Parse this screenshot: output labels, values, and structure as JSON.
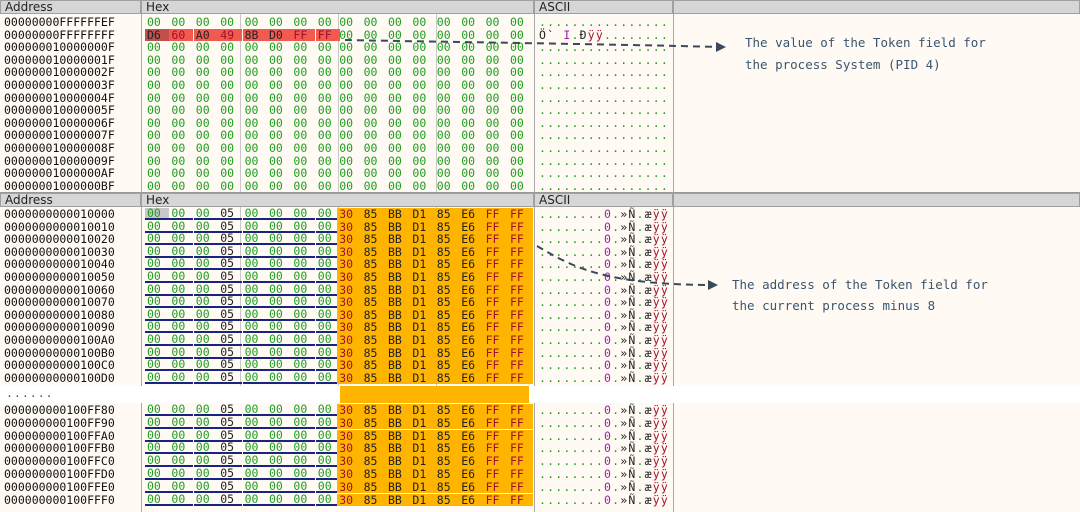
{
  "columns": {
    "address": "Address",
    "hex": "Hex",
    "ascii": "ASCII"
  },
  "colors": {
    "hex_zero": "#1f9d1f",
    "token_highlight": "#f0504a",
    "pointer_highlight": "#ffb400",
    "underline": "#1a237e"
  },
  "top_pane": {
    "rows": [
      {
        "address": "00000000FFFFFFEF",
        "bytes": [
          "00",
          "00",
          "00",
          "00",
          "00",
          "00",
          "00",
          "00",
          "00",
          "00",
          "00",
          "00",
          "00",
          "00",
          "00",
          "00"
        ],
        "ascii": "................"
      },
      {
        "address": "00000000FFFFFFFF",
        "bytes": [
          "D6",
          "60",
          "A0",
          "49",
          "8B",
          "D0",
          "FF",
          "FF",
          "00",
          "00",
          "00",
          "00",
          "00",
          "00",
          "00",
          "00"
        ],
        "ascii": "Ö` I.Ðÿÿ........"
      },
      {
        "address": "000000010000000F",
        "bytes": [
          "00",
          "00",
          "00",
          "00",
          "00",
          "00",
          "00",
          "00",
          "00",
          "00",
          "00",
          "00",
          "00",
          "00",
          "00",
          "00"
        ],
        "ascii": "................"
      },
      {
        "address": "000000010000001F",
        "bytes": [
          "00",
          "00",
          "00",
          "00",
          "00",
          "00",
          "00",
          "00",
          "00",
          "00",
          "00",
          "00",
          "00",
          "00",
          "00",
          "00"
        ],
        "ascii": "................"
      },
      {
        "address": "000000010000002F",
        "bytes": [
          "00",
          "00",
          "00",
          "00",
          "00",
          "00",
          "00",
          "00",
          "00",
          "00",
          "00",
          "00",
          "00",
          "00",
          "00",
          "00"
        ],
        "ascii": "................"
      },
      {
        "address": "000000010000003F",
        "bytes": [
          "00",
          "00",
          "00",
          "00",
          "00",
          "00",
          "00",
          "00",
          "00",
          "00",
          "00",
          "00",
          "00",
          "00",
          "00",
          "00"
        ],
        "ascii": "................"
      },
      {
        "address": "000000010000004F",
        "bytes": [
          "00",
          "00",
          "00",
          "00",
          "00",
          "00",
          "00",
          "00",
          "00",
          "00",
          "00",
          "00",
          "00",
          "00",
          "00",
          "00"
        ],
        "ascii": "................"
      },
      {
        "address": "000000010000005F",
        "bytes": [
          "00",
          "00",
          "00",
          "00",
          "00",
          "00",
          "00",
          "00",
          "00",
          "00",
          "00",
          "00",
          "00",
          "00",
          "00",
          "00"
        ],
        "ascii": "................"
      },
      {
        "address": "000000010000006F",
        "bytes": [
          "00",
          "00",
          "00",
          "00",
          "00",
          "00",
          "00",
          "00",
          "00",
          "00",
          "00",
          "00",
          "00",
          "00",
          "00",
          "00"
        ],
        "ascii": "................"
      },
      {
        "address": "000000010000007F",
        "bytes": [
          "00",
          "00",
          "00",
          "00",
          "00",
          "00",
          "00",
          "00",
          "00",
          "00",
          "00",
          "00",
          "00",
          "00",
          "00",
          "00"
        ],
        "ascii": "................"
      },
      {
        "address": "000000010000008F",
        "bytes": [
          "00",
          "00",
          "00",
          "00",
          "00",
          "00",
          "00",
          "00",
          "00",
          "00",
          "00",
          "00",
          "00",
          "00",
          "00",
          "00"
        ],
        "ascii": "................"
      },
      {
        "address": "000000010000009F",
        "bytes": [
          "00",
          "00",
          "00",
          "00",
          "00",
          "00",
          "00",
          "00",
          "00",
          "00",
          "00",
          "00",
          "00",
          "00",
          "00",
          "00"
        ],
        "ascii": "................"
      },
      {
        "address": "00000001000000AF",
        "bytes": [
          "00",
          "00",
          "00",
          "00",
          "00",
          "00",
          "00",
          "00",
          "00",
          "00",
          "00",
          "00",
          "00",
          "00",
          "00",
          "00"
        ],
        "ascii": "................"
      },
      {
        "address": "00000001000000BF",
        "bytes": [
          "00",
          "00",
          "00",
          "00",
          "00",
          "00",
          "00",
          "00",
          "00",
          "00",
          "00",
          "00",
          "00",
          "00",
          "00",
          "00"
        ],
        "ascii": "................"
      }
    ]
  },
  "bottom_bytes": [
    "00",
    "00",
    "00",
    "05",
    "00",
    "00",
    "00",
    "00",
    "30",
    "85",
    "BB",
    "D1",
    "85",
    "E6",
    "FF",
    "FF"
  ],
  "bottom_ascii": "........0.»Ñ.æÿÿ",
  "bottom_pane": {
    "rows_a": [
      "0000000000010000",
      "0000000000010010",
      "0000000000010020",
      "0000000000010030",
      "0000000000010040",
      "0000000000010050",
      "0000000000010060",
      "0000000000010070",
      "0000000000010080",
      "0000000000010090",
      "00000000000100A0",
      "00000000000100B0",
      "00000000000100C0",
      "00000000000100D0"
    ],
    "ellipsis": "......",
    "rows_b": [
      "000000000100FF80",
      "000000000100FF90",
      "000000000100FFA0",
      "000000000100FFB0",
      "000000000100FFC0",
      "000000000100FFD0",
      "000000000100FFE0",
      "000000000100FFF0"
    ]
  },
  "annotations": [
    {
      "line1": "The value of the Token field for",
      "line2": "the process System (PID 4)"
    },
    {
      "line1": "The address of the Token field for",
      "line2": "the current process minus 8"
    }
  ]
}
